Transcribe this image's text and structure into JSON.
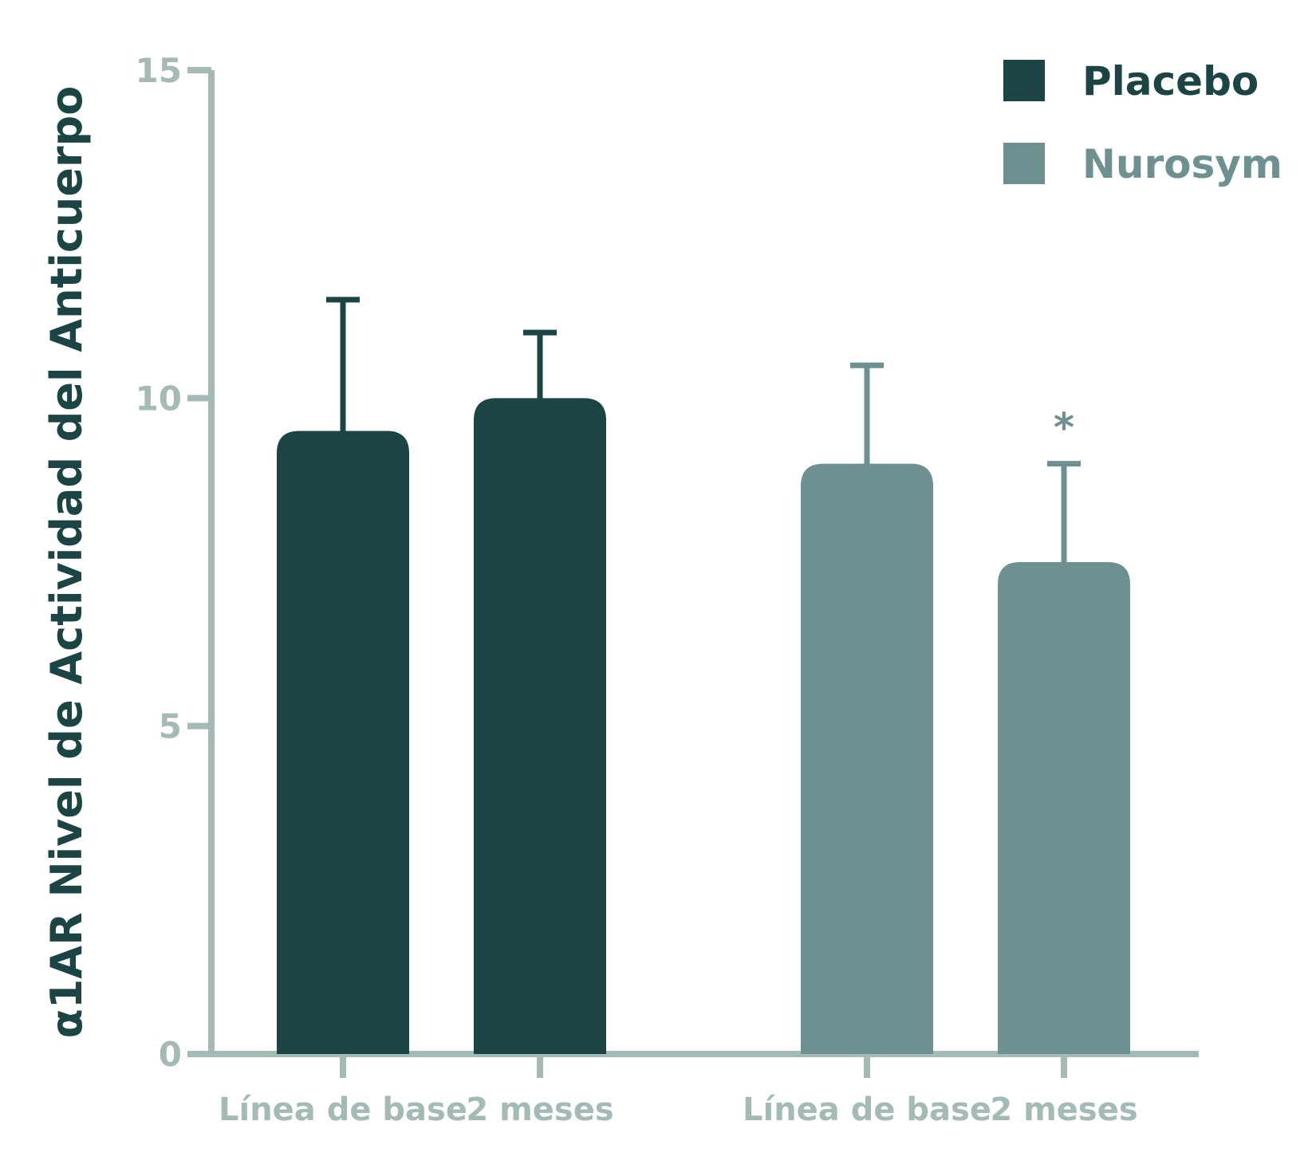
{
  "chart_data": {
    "type": "bar",
    "ylabel": "α1AR Nivel de Actividad del Anticuerpo",
    "xlabel": "",
    "ylim": [
      0,
      15
    ],
    "yticks": [
      0,
      5,
      10,
      15
    ],
    "grid": false,
    "legend_position": "top-right",
    "categories": [
      "Línea de base",
      "2 meses"
    ],
    "series": [
      {
        "name": "Placebo",
        "color": "#1c4445",
        "values": [
          9.5,
          10.0
        ],
        "errors": [
          2.0,
          1.0
        ],
        "annotations": [
          "",
          ""
        ]
      },
      {
        "name": "Nurosym",
        "color": "#6f9090",
        "values": [
          9.0,
          7.5
        ],
        "errors": [
          1.5,
          1.5
        ],
        "annotations": [
          "",
          "*"
        ]
      }
    ],
    "axis_color": "#a3bab6"
  }
}
